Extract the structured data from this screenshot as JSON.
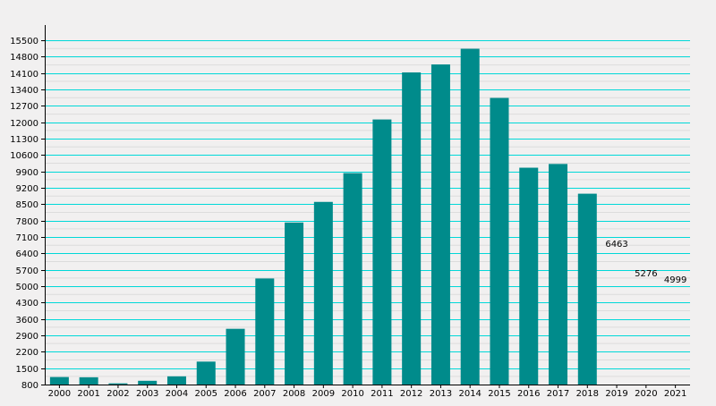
{
  "chart_data": {
    "type": "bar",
    "categories": [
      "2000",
      "2001",
      "2002",
      "2003",
      "2004",
      "2005",
      "2006",
      "2007",
      "2008",
      "2009",
      "2010",
      "2011",
      "2012",
      "2013",
      "2014",
      "2015",
      "2016",
      "2017",
      "2018",
      "2019",
      "2020",
      "2021"
    ],
    "values": [
      1120,
      1110,
      850,
      960,
      1150,
      1780,
      3180,
      5330,
      7720,
      8600,
      9830,
      12120,
      14130,
      14470,
      15140,
      13040,
      10060,
      10220,
      8950,
      null,
      null,
      null
    ],
    "data_labels": [
      {
        "category": "2019",
        "text": "6463"
      },
      {
        "category": "2020",
        "text": "5276"
      },
      {
        "category": "2021",
        "text": "4999"
      }
    ],
    "yticks": [
      800,
      1500,
      2200,
      2900,
      3600,
      4300,
      5000,
      5700,
      6400,
      7100,
      7800,
      8500,
      9200,
      9900,
      10600,
      11300,
      12000,
      12700,
      13400,
      14100,
      14800,
      15500
    ],
    "ylim": [
      800,
      16000
    ],
    "title": "",
    "xlabel": "",
    "ylabel": "",
    "grid": "horizontal",
    "colors": {
      "bar": "#008b8b",
      "grid": "#00d8d8",
      "minor_grid": "#dcdcdc",
      "axis": "#000000",
      "background": "#f1f0f0",
      "text": "#000000"
    }
  }
}
